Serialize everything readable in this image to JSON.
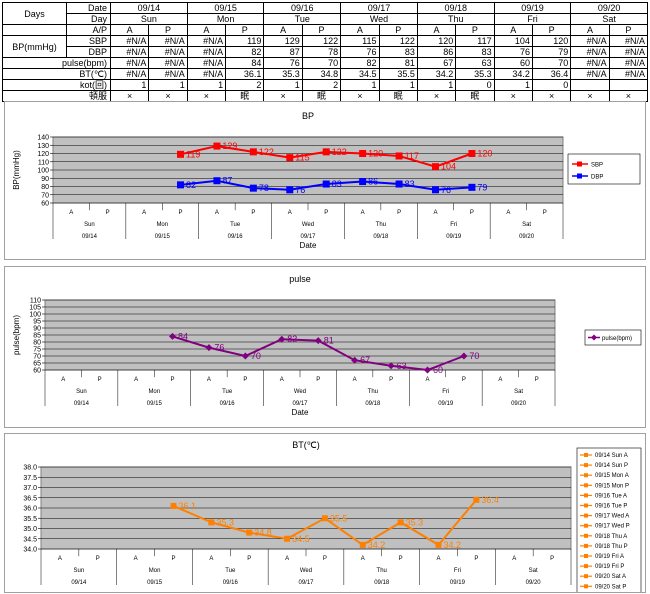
{
  "table": {
    "row_titles": {
      "days": "Days",
      "date": "Date",
      "day": "Day",
      "ap": "A/P",
      "bp": "BP(mmHg)",
      "sbp": "SBP",
      "dbp": "DBP",
      "pulse": "pulse(bpm)",
      "bt": "BT(℃)",
      "kot": "kot(回)",
      "med": "頓服"
    },
    "dates": [
      "09/14",
      "09/15",
      "09/16",
      "09/17",
      "09/18",
      "09/19",
      "09/20"
    ],
    "days": [
      "Sun",
      "Mon",
      "Tue",
      "Wed",
      "Thu",
      "Fri",
      "Sat"
    ],
    "ap_labels": [
      "A",
      "P",
      "A",
      "P",
      "A",
      "P",
      "A",
      "P",
      "A",
      "P",
      "A",
      "P",
      "A",
      "P"
    ],
    "sbp": [
      "#N/A",
      "#N/A",
      "#N/A",
      "119",
      "129",
      "122",
      "115",
      "122",
      "120",
      "117",
      "104",
      "120",
      "#N/A",
      "#N/A"
    ],
    "dbp": [
      "#N/A",
      "#N/A",
      "#N/A",
      "82",
      "87",
      "78",
      "76",
      "83",
      "86",
      "83",
      "76",
      "79",
      "#N/A",
      "#N/A"
    ],
    "pulse": [
      "#N/A",
      "#N/A",
      "#N/A",
      "84",
      "76",
      "70",
      "82",
      "81",
      "67",
      "63",
      "60",
      "70",
      "#N/A",
      "#N/A"
    ],
    "bt": [
      "#N/A",
      "#N/A",
      "#N/A",
      "36.1",
      "35.3",
      "34.8",
      "34.5",
      "35.5",
      "34.2",
      "35.3",
      "34.2",
      "36.4",
      "#N/A",
      "#N/A"
    ],
    "kot": [
      "1",
      "1",
      "1",
      "2",
      "1",
      "2",
      "1",
      "1",
      "1",
      "0",
      "1",
      "0",
      "",
      ""
    ],
    "med": [
      "×",
      "×",
      "×",
      "眠",
      "×",
      "眠",
      "×",
      "眠",
      "×",
      "眠",
      "×",
      "×",
      "×",
      "×"
    ]
  },
  "chart_data": [
    {
      "type": "line",
      "title": "BP",
      "xlabel": "Date",
      "ylabel": "BP(mmHg)",
      "ylim": [
        60,
        140
      ],
      "yticks": [
        60,
        70,
        80,
        90,
        100,
        110,
        120,
        130,
        140
      ],
      "x_ap": [
        "A",
        "P",
        "A",
        "P",
        "A",
        "P",
        "A",
        "P",
        "A",
        "P",
        "A",
        "P",
        "A",
        "P"
      ],
      "x_days": [
        "Sun",
        "Mon",
        "Tue",
        "Wed",
        "Thu",
        "Fri",
        "Sat"
      ],
      "x_dates": [
        "09/14",
        "09/15",
        "09/16",
        "09/17",
        "09/18",
        "09/19",
        "09/20"
      ],
      "series": [
        {
          "name": "SBP",
          "color": "#ff0000",
          "marker": "square",
          "values": [
            null,
            null,
            null,
            119,
            129,
            122,
            115,
            122,
            120,
            117,
            104,
            120,
            null,
            null
          ]
        },
        {
          "name": "DBP",
          "color": "#0000ff",
          "marker": "square",
          "values": [
            null,
            null,
            null,
            82,
            87,
            78,
            76,
            83,
            86,
            83,
            76,
            79,
            null,
            null
          ]
        }
      ],
      "grid": true,
      "legend": "right",
      "plot_bg": "#c0c0c0"
    },
    {
      "type": "line",
      "title": "pulse",
      "xlabel": "Date",
      "ylabel": "pulse(bpm)",
      "ylim": [
        60,
        110
      ],
      "yticks": [
        60,
        65,
        70,
        75,
        80,
        85,
        90,
        95,
        100,
        105,
        110
      ],
      "x_ap": [
        "A",
        "P",
        "A",
        "P",
        "A",
        "P",
        "A",
        "P",
        "A",
        "P",
        "A",
        "P",
        "A",
        "P"
      ],
      "x_days": [
        "Sun",
        "Mon",
        "Tue",
        "Wed",
        "Thu",
        "Fri",
        "Sat"
      ],
      "x_dates": [
        "09/14",
        "09/15",
        "09/16",
        "09/17",
        "09/18",
        "09/19",
        "09/20"
      ],
      "series": [
        {
          "name": "pulse(bpm)",
          "color": "#800080",
          "marker": "diamond",
          "values": [
            null,
            null,
            null,
            84,
            76,
            70,
            82,
            81,
            67,
            63,
            60,
            70,
            null,
            null
          ]
        }
      ],
      "grid": true,
      "legend": "right",
      "plot_bg": "#c0c0c0"
    },
    {
      "type": "line",
      "title": "BT(℃)",
      "xlabel": "",
      "ylabel": "",
      "ylim": [
        34.0,
        38.0
      ],
      "yticks": [
        "34.0",
        "34.5",
        "35.0",
        "35.5",
        "36.0",
        "36.5",
        "37.0",
        "37.5",
        "38.0"
      ],
      "x_ap": [
        "A",
        "P",
        "A",
        "P",
        "A",
        "P",
        "A",
        "P",
        "A",
        "P",
        "A",
        "P",
        "A",
        "P"
      ],
      "x_days": [
        "Sun",
        "Mon",
        "Tue",
        "Wed",
        "Thu",
        "Fri",
        "Sat"
      ],
      "x_dates": [
        "09/14",
        "09/15",
        "09/16",
        "09/17",
        "09/18",
        "09/19",
        "09/20"
      ],
      "series": [
        {
          "name": "BT",
          "color": "#ff8000",
          "marker": "square",
          "values": [
            null,
            null,
            null,
            36.1,
            35.3,
            34.8,
            34.5,
            35.5,
            34.2,
            35.3,
            34.2,
            36.4,
            null,
            null
          ]
        }
      ],
      "legend_entries": [
        "09/14 Sun A",
        "09/14 Sun P",
        "09/15 Mon A",
        "09/15 Mon P",
        "09/16 Tue A",
        "09/16 Tue P",
        "09/17 Wed A",
        "09/17 Wed P",
        "09/18 Thu A",
        "09/18 Thu P",
        "09/19 Fri A",
        "09/19 Fri P",
        "09/20 Sat A",
        "09/20 Sat P"
      ],
      "grid": true,
      "legend": "right",
      "plot_bg": "#c0c0c0"
    }
  ]
}
